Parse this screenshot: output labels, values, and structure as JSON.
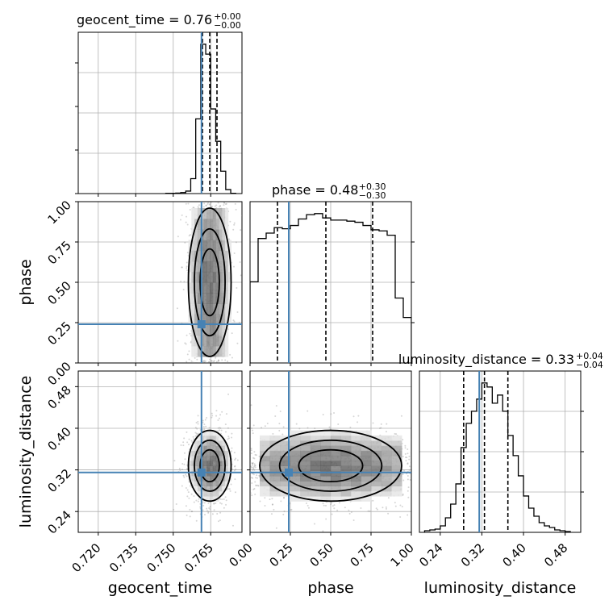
{
  "chart_data": {
    "type": "corner",
    "parameters": [
      {
        "key": "geocent_time",
        "axis_label": "geocent_time",
        "title_value": "0.76",
        "title_plus": "+0.00",
        "title_minus": "−0.00",
        "lim": [
          0.712,
          0.7775
        ],
        "ticks": [
          0.72,
          0.735,
          0.75,
          0.765
        ],
        "tick_labels": [
          "0.720",
          "0.735",
          "0.750",
          "0.765"
        ],
        "truth": 0.7613,
        "quantiles": [
          0.7617,
          0.7646,
          0.7675
        ],
        "hist_bins": [
          0.747,
          0.749,
          0.751,
          0.753,
          0.755,
          0.757,
          0.759,
          0.761,
          0.763,
          0.765,
          0.767,
          0.769,
          0.771,
          0.773,
          0.775
        ],
        "hist_counts": [
          0.5,
          0.5,
          1,
          2,
          5,
          30,
          150,
          300,
          280,
          170,
          105,
          45,
          8,
          0.5
        ]
      },
      {
        "key": "phase",
        "axis_label": "phase",
        "title_value": "0.48",
        "title_plus": "+0.30",
        "title_minus": "−0.30",
        "lim": [
          0,
          1
        ],
        "ticks": [
          0,
          0.25,
          0.5,
          0.75,
          1.0
        ],
        "tick_labels": [
          "0.00",
          "0.25",
          "0.50",
          "0.75",
          "1.00"
        ],
        "truth": 0.24,
        "quantiles": [
          0.17,
          0.47,
          0.76
        ],
        "hist_bins": [
          0,
          0.05,
          0.1,
          0.15,
          0.2,
          0.25,
          0.3,
          0.35,
          0.4,
          0.45,
          0.5,
          0.55,
          0.6,
          0.65,
          0.7,
          0.75,
          0.8,
          0.85,
          0.9,
          0.95,
          1.0
        ],
        "hist_counts": [
          75,
          115,
          120,
          125,
          124,
          127,
          133,
          137,
          138,
          134,
          132,
          132,
          131,
          130,
          127,
          123,
          122,
          118,
          60,
          42
        ]
      },
      {
        "key": "luminosity_distance",
        "axis_label": "luminosity_distance",
        "title_value": "0.33",
        "title_plus": "+0.04",
        "title_minus": "−0.04",
        "lim": [
          0.2,
          0.51
        ],
        "ticks": [
          0.24,
          0.32,
          0.4,
          0.48
        ],
        "tick_labels": [
          "0.24",
          "0.32",
          "0.40",
          "0.48"
        ],
        "truth": 0.315,
        "quantiles": [
          0.285,
          0.325,
          0.37
        ],
        "hist_bins": [
          0.21,
          0.22,
          0.23,
          0.24,
          0.25,
          0.26,
          0.27,
          0.28,
          0.29,
          0.3,
          0.31,
          0.32,
          0.33,
          0.34,
          0.35,
          0.36,
          0.37,
          0.38,
          0.39,
          0.4,
          0.41,
          0.42,
          0.43,
          0.44,
          0.45,
          0.46,
          0.47,
          0.48,
          0.49
        ],
        "hist_counts": [
          2,
          3,
          4,
          8,
          18,
          35,
          60,
          105,
          135,
          150,
          165,
          185,
          180,
          160,
          170,
          150,
          120,
          95,
          70,
          45,
          30,
          20,
          12,
          8,
          6,
          3,
          2,
          1
        ]
      }
    ],
    "grid": true,
    "truth_color": "#4682b4",
    "quantile_style": "dashed",
    "contour_color": "#000000"
  }
}
